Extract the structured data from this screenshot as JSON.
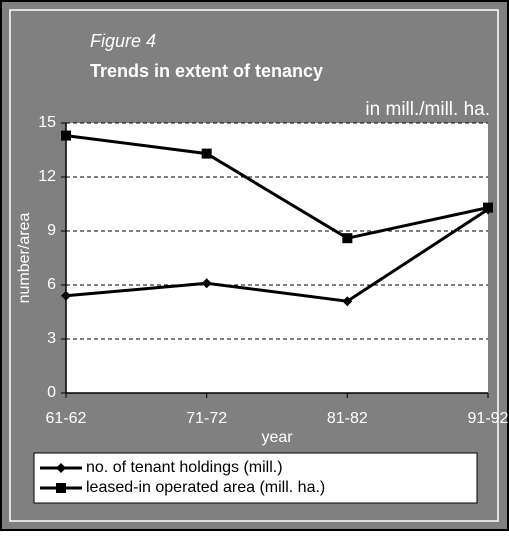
{
  "chart_data": {
    "type": "line",
    "figure_label": "Figure 4",
    "title": "Trends in extent of tenancy",
    "unit_label": "in mill./mill. ha.",
    "y_label": "number/area",
    "x_label": "year",
    "categories": [
      "61-62",
      "71-72",
      "81-82",
      "91-92"
    ],
    "series": [
      {
        "name": "no. of tenant holdings (mill.)",
        "color": "#000000",
        "marker": "diamond",
        "values": [
          5.4,
          6.1,
          5.1,
          10.2
        ]
      },
      {
        "name": "leased-in operated area (mill. ha.)",
        "color": "#000000",
        "marker": "square",
        "values": [
          14.3,
          13.3,
          8.6,
          10.3
        ]
      }
    ],
    "ylim": [
      0,
      15
    ],
    "yticks": [
      0,
      3,
      6,
      9,
      12,
      15
    ],
    "grid": true
  }
}
